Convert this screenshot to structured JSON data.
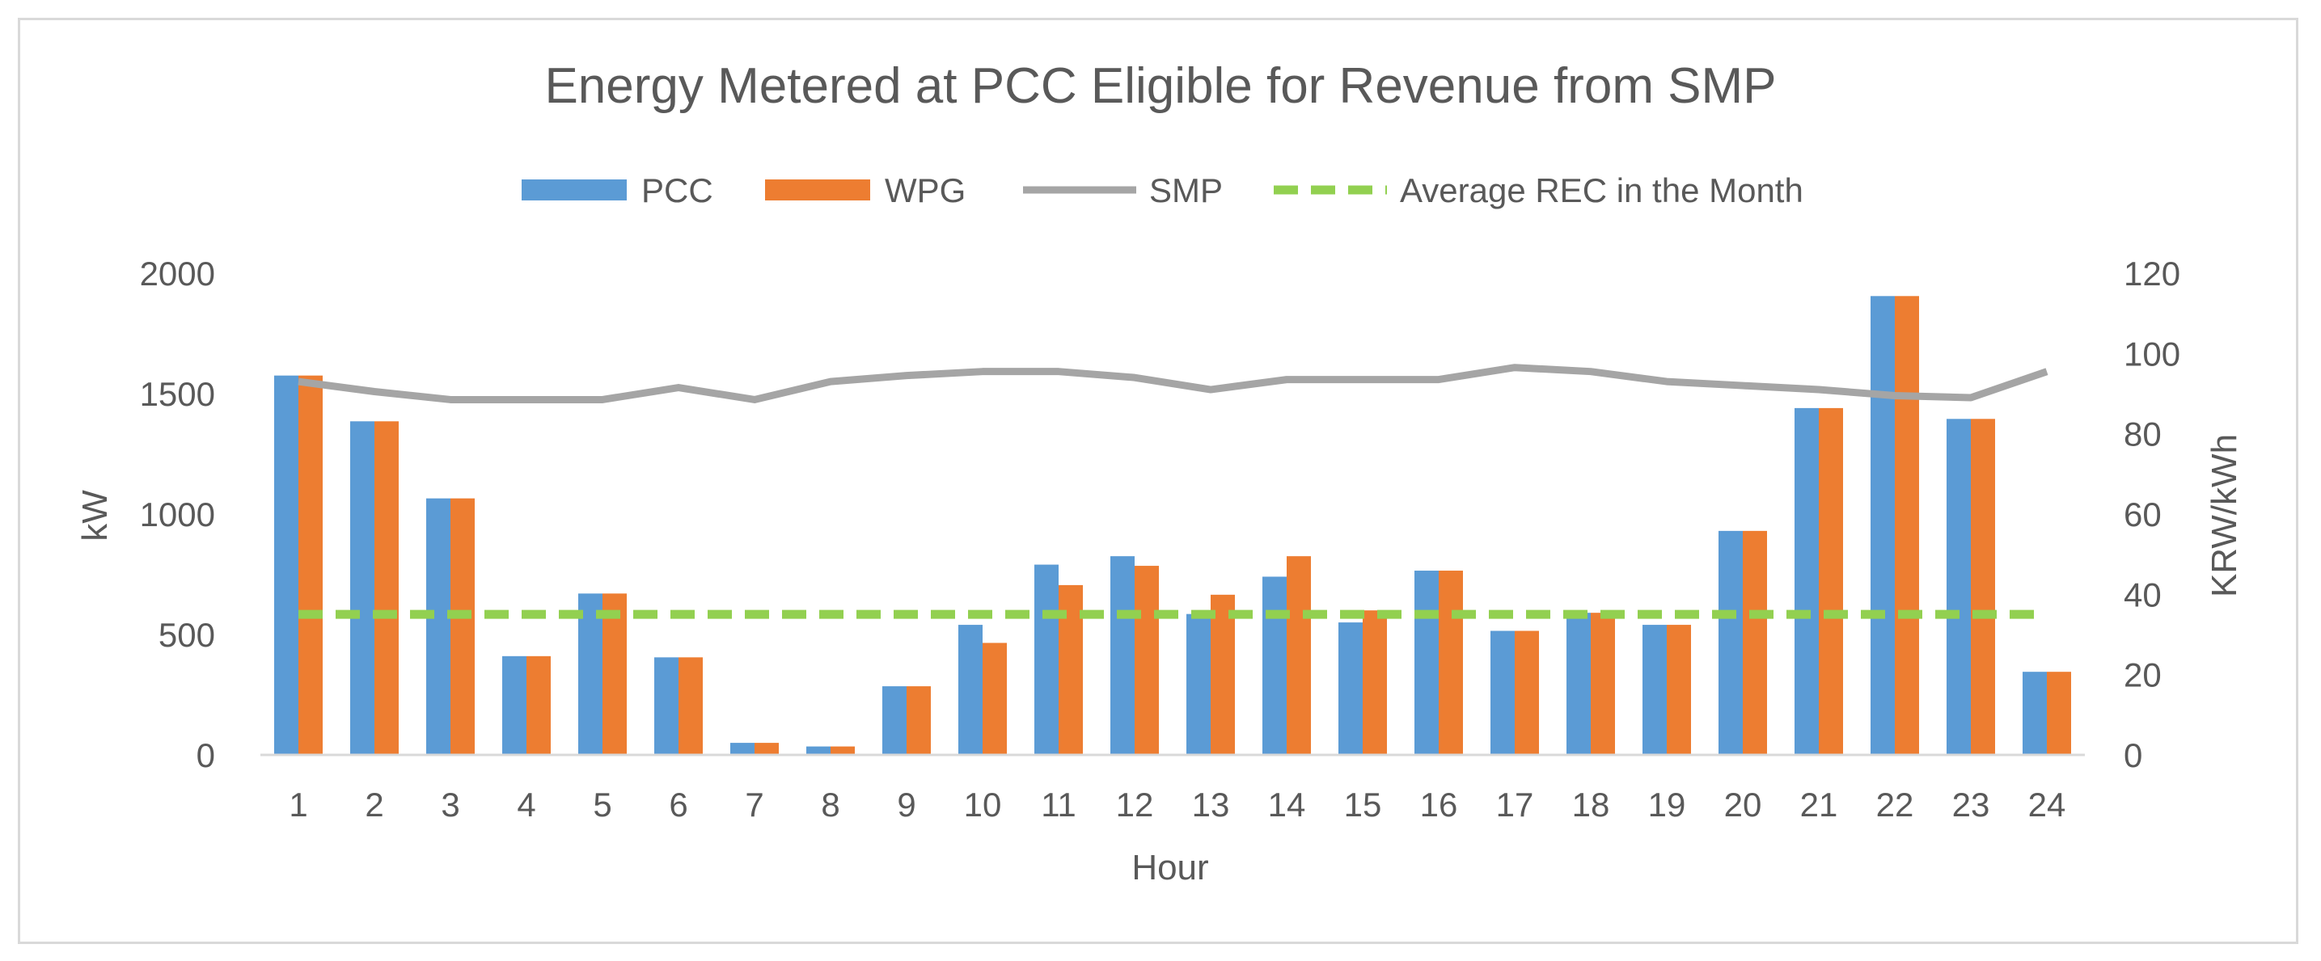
{
  "chart_data": {
    "type": "bar",
    "title": "Energy Metered at PCC Eligible for Revenue from SMP",
    "xlabel": "Hour",
    "ylabel": "kW",
    "y2label": "KRW/kWh",
    "categories": [
      "1",
      "2",
      "3",
      "4",
      "5",
      "6",
      "7",
      "8",
      "9",
      "10",
      "11",
      "12",
      "13",
      "14",
      "15",
      "16",
      "17",
      "18",
      "19",
      "20",
      "21",
      "22",
      "23",
      "24"
    ],
    "ylim": [
      0,
      2000
    ],
    "yticks": [
      "0",
      "500",
      "1000",
      "1500",
      "2000"
    ],
    "y2lim": [
      0,
      120
    ],
    "y2ticks": [
      "0",
      "20",
      "40",
      "60",
      "80",
      "100",
      "120"
    ],
    "grid": false,
    "legend_position": "top-center",
    "series": [
      {
        "name": "PCC",
        "kind": "bar",
        "axis": "left",
        "color": "#5b9bd5",
        "values": [
          1575,
          1385,
          1065,
          410,
          670,
          405,
          50,
          35,
          285,
          540,
          790,
          825,
          585,
          740,
          550,
          765,
          515,
          590,
          540,
          930,
          1440,
          1905,
          1395,
          345
        ]
      },
      {
        "name": "WPG",
        "kind": "bar",
        "axis": "left",
        "color": "#ed7d31",
        "values": [
          1575,
          1385,
          1065,
          410,
          670,
          405,
          50,
          35,
          285,
          465,
          705,
          785,
          665,
          825,
          600,
          765,
          515,
          590,
          540,
          930,
          1440,
          1905,
          1395,
          345
        ]
      },
      {
        "name": "SMP",
        "kind": "line",
        "axis": "right",
        "color": "#a5a5a5",
        "values": [
          93,
          90.5,
          88.5,
          88.5,
          88.5,
          91.5,
          88.5,
          93,
          94.5,
          95.5,
          95.5,
          94,
          91,
          93.5,
          93.5,
          93.5,
          96.5,
          95.5,
          93,
          92,
          91,
          89.5,
          89,
          95.5
        ]
      },
      {
        "name": "Average REC in the Month",
        "kind": "dashed-line",
        "axis": "right",
        "color": "#92d050",
        "values": [
          35,
          35,
          35,
          35,
          35,
          35,
          35,
          35,
          35,
          35,
          35,
          35,
          35,
          35,
          35,
          35,
          35,
          35,
          35,
          35,
          35,
          35,
          35,
          35
        ]
      }
    ]
  }
}
